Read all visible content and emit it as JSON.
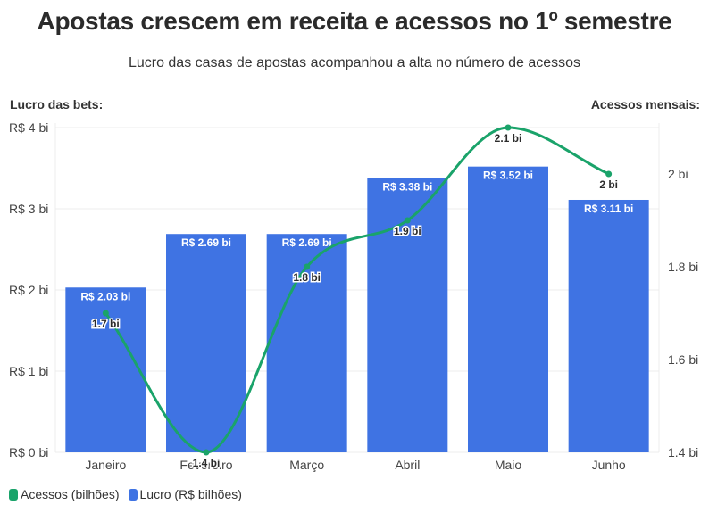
{
  "title": "Apostas crescem em receita e acessos no 1º semestre",
  "subtitle": "Lucro das casas de apostas acompanhou a alta no número de acessos",
  "colors": {
    "bars": "#3f73e3",
    "line": "#1aa36a",
    "grid": "#ececec"
  },
  "chart_data": {
    "type": "bar",
    "categories": [
      "Janeiro",
      "Fevereiro",
      "Março",
      "Abril",
      "Maio",
      "Junho"
    ],
    "ylabel_left": "Lucro das bets:",
    "ylabel_right": "Acessos mensais:",
    "ylim_left": [
      0,
      4
    ],
    "ylim_right": [
      1.4,
      2.1
    ],
    "yticks_left": [
      "R$ 0 bi",
      "R$ 1 bi",
      "R$ 2 bi",
      "R$ 3 bi",
      "R$ 4 bi"
    ],
    "yticks_right": [
      "1.4 bi",
      "1.6 bi",
      "1.8 bi",
      "2 bi"
    ],
    "grid": true,
    "legend_position": "bottom-left",
    "series": [
      {
        "name": "Lucro (R$ bilhões)",
        "type": "bar",
        "axis": "left",
        "values": [
          2.03,
          2.69,
          2.69,
          3.38,
          3.52,
          3.11
        ],
        "labels": [
          "R$ 2.03 bi",
          "R$ 2.69 bi",
          "R$ 2.69 bi",
          "R$ 3.38 bi",
          "R$ 3.52 bi",
          "R$ 3.11 bi"
        ]
      },
      {
        "name": "Acessos (bilhões)",
        "type": "line",
        "axis": "right",
        "values": [
          1.7,
          1.4,
          1.8,
          1.9,
          2.1,
          2.0
        ],
        "labels": [
          "1.7 bi",
          "1.4 bi",
          "1.8 bi",
          "1.9 bi",
          "2.1 bi",
          "2 bi"
        ]
      }
    ]
  }
}
